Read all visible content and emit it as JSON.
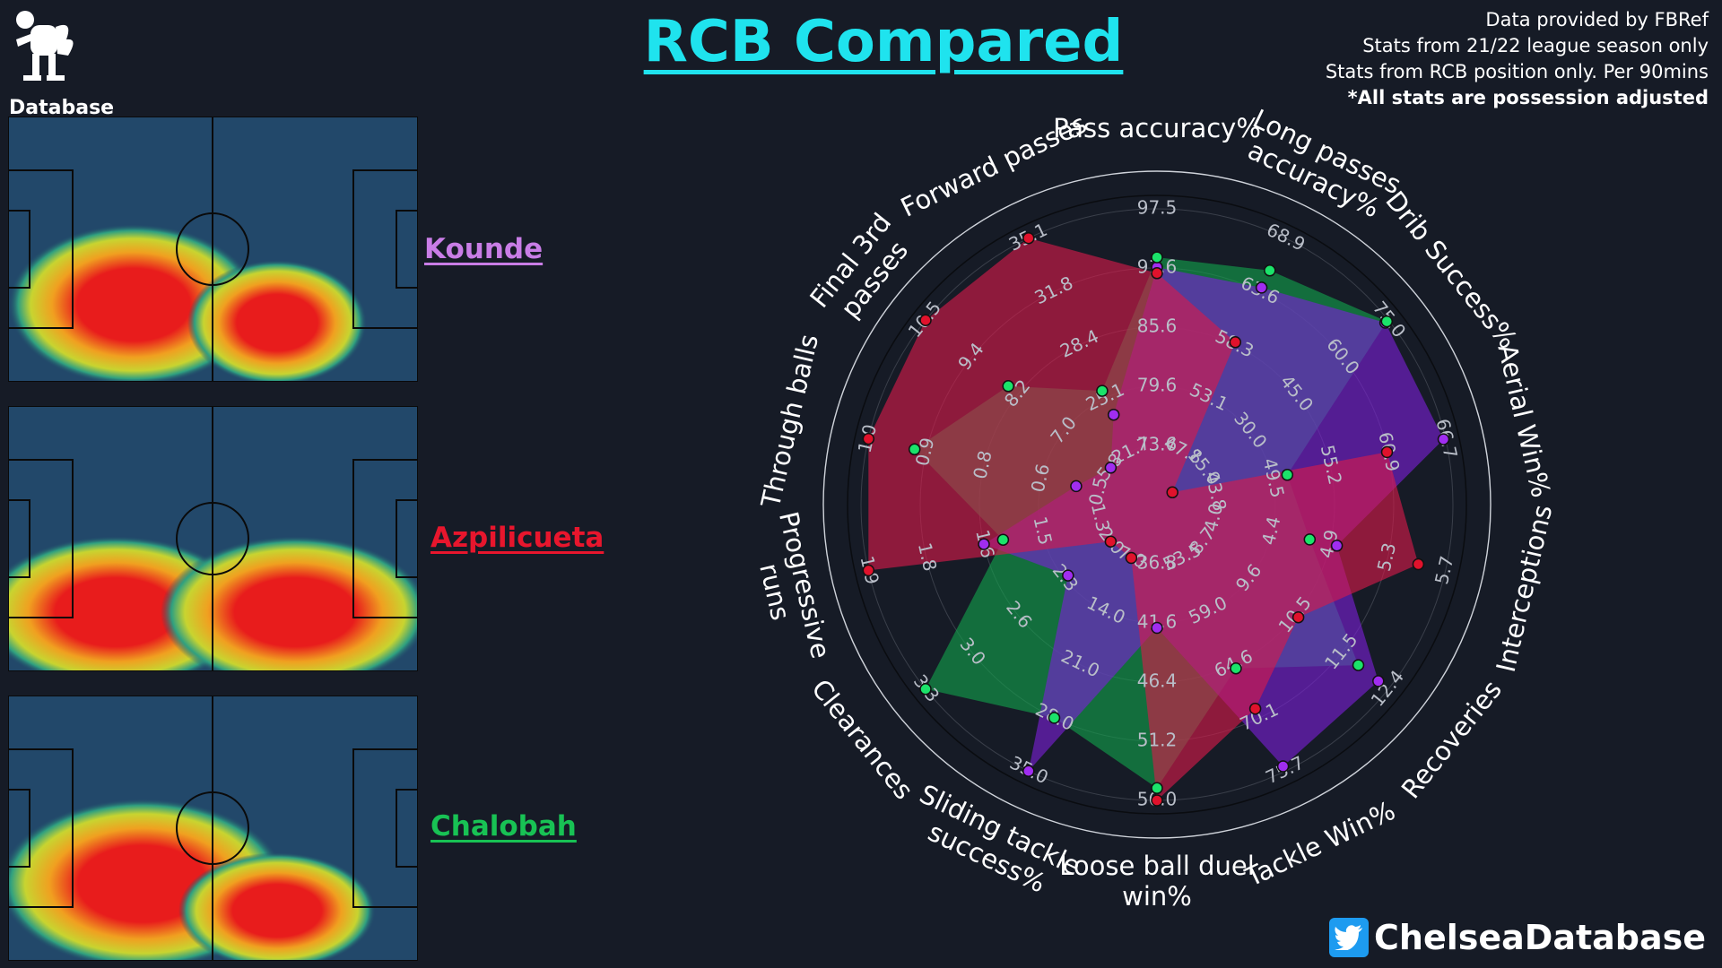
{
  "page": {
    "title": "RCB Compared",
    "logo_text": "Database",
    "notes": [
      "Data provided by FBRef",
      "Stats from 21/22 league season only",
      "Stats from RCB position only. Per 90mins",
      "*All stats are possession adjusted"
    ],
    "twitter_handle": "ChelseaDatabase"
  },
  "players": [
    {
      "name": "Kounde",
      "color": "#c97de6"
    },
    {
      "name": "Azpilicueta",
      "color": "#e8162d"
    },
    {
      "name": "Chalobah",
      "color": "#18c254"
    }
  ],
  "colors": {
    "background": "#161b26",
    "title": "#1fe3ee",
    "kounde_fill": "#7a1fd6",
    "azpilicueta_fill": "#d81a4a",
    "chalobah_fill": "#11a24c",
    "kounde_point": "#a02df0",
    "azpilicueta_point": "#e0122c",
    "chalobah_point": "#1be36a"
  },
  "chart_data": {
    "type": "radar",
    "title": "RCB Compared",
    "categories": [
      "Pass accuracy%",
      "Long passes accuracy%",
      "Drib Success%",
      "Aerial Win%",
      "Interceptions",
      "Recoveries",
      "Tackle Win%",
      "Loose ball duel win%",
      "Sliding tackle success%",
      "Clearances",
      "Progressive runs",
      "Through balls",
      "Final 3rd passes",
      "Forward passes"
    ],
    "category_lines": [
      [
        "Pass accuracy%"
      ],
      [
        "Long passes",
        "accuracy%"
      ],
      [
        "Drib Success%"
      ],
      [
        "Aerial Win%"
      ],
      [
        "Interceptions"
      ],
      [
        "Recoveries"
      ],
      [
        "Tackle Win%"
      ],
      [
        "Loose ball duel",
        "win%"
      ],
      [
        "Sliding tackle",
        "success%"
      ],
      [
        "Clearances"
      ],
      [
        "Progressive",
        "runs"
      ],
      [
        "Through balls"
      ],
      [
        "Final 3rd",
        "passes"
      ],
      [
        "Forward passes"
      ]
    ],
    "tick_labels": [
      [
        "73.6",
        "79.6",
        "85.6",
        "91.6",
        "97.5"
      ],
      [
        "47.8",
        "53.1",
        "58.3",
        "63.6",
        "68.9"
      ],
      [
        "15.0",
        "30.0",
        "45.0",
        "60.0",
        "75.0"
      ],
      [
        "43.8",
        "49.5",
        "55.2",
        "60.9",
        "66.7"
      ],
      [
        "4.0",
        "4.4",
        "4.9",
        "5.3",
        "5.7"
      ],
      [
        "8.7",
        "9.6",
        "10.5",
        "11.5",
        "12.4"
      ],
      [
        "53.5",
        "59.0",
        "64.6",
        "70.1",
        "75.7"
      ],
      [
        "36.8",
        "41.6",
        "46.4",
        "51.2",
        "56.0"
      ],
      [
        "7.0",
        "14.0",
        "21.0",
        "28.0",
        "35.0"
      ],
      [
        "2.0",
        "2.3",
        "2.6",
        "3.0",
        "3.3"
      ],
      [
        "1.3",
        "1.5",
        "1.6",
        "1.8",
        "1.9"
      ],
      [
        "0.5",
        "0.6",
        "0.8",
        "0.9",
        "1.0"
      ],
      [
        "5.8",
        "7.0",
        "8.2",
        "9.4",
        "10.5"
      ],
      [
        "21.7",
        "25.1",
        "28.4",
        "31.8",
        "35.1"
      ]
    ],
    "series": [
      {
        "name": "Kounde",
        "values": [
          91.6,
          64.0,
          74.0,
          66.5,
          4.9,
          12.2,
          75.2,
          42.0,
          35.0,
          2.3,
          1.6,
          0.55,
          5.8,
          24.0
        ]
      },
      {
        "name": "Azpilicueta",
        "values": [
          91.0,
          58.6,
          5.0,
          60.9,
          5.5,
          10.6,
          69.2,
          56.0,
          7.0,
          2.0,
          1.9,
          1.0,
          10.5,
          35.1
        ]
      },
      {
        "name": "Chalobah",
        "values": [
          92.6,
          65.7,
          74.5,
          51.0,
          4.7,
          11.8,
          65.0,
          55.0,
          28.0,
          3.3,
          1.55,
          0.9,
          8.4,
          25.5
        ]
      }
    ]
  }
}
